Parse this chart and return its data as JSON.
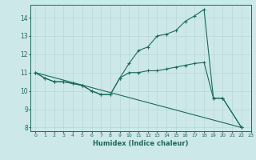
{
  "title": "",
  "xlabel": "Humidex (Indice chaleur)",
  "ylabel": "",
  "bg_color": "#cce8e8",
  "grid_color": "#b8d8d8",
  "line_color": "#1a6b5a",
  "xlim": [
    -0.5,
    23
  ],
  "ylim": [
    7.8,
    14.7
  ],
  "yticks": [
    8,
    9,
    10,
    11,
    12,
    13,
    14
  ],
  "xticks": [
    0,
    1,
    2,
    3,
    4,
    5,
    6,
    7,
    8,
    9,
    10,
    11,
    12,
    13,
    14,
    15,
    16,
    17,
    18,
    19,
    20,
    21,
    22,
    23
  ],
  "series": [
    {
      "x": [
        0,
        1,
        2,
        3,
        4,
        5,
        6,
        7,
        8,
        9,
        10,
        11,
        12,
        13,
        14,
        15,
        16,
        17,
        18,
        19,
        20,
        22
      ],
      "y": [
        11.0,
        10.7,
        10.5,
        10.5,
        10.4,
        10.3,
        10.0,
        9.8,
        9.8,
        10.7,
        11.5,
        12.2,
        12.4,
        13.0,
        13.1,
        13.3,
        13.8,
        14.1,
        14.45,
        9.6,
        9.6,
        8.0
      ],
      "has_markers": true
    },
    {
      "x": [
        0,
        1,
        2,
        3,
        4,
        5,
        6,
        7,
        8,
        9,
        10,
        11,
        12,
        13,
        14,
        15,
        16,
        17,
        18,
        19,
        20,
        22
      ],
      "y": [
        11.0,
        10.7,
        10.5,
        10.5,
        10.4,
        10.3,
        10.0,
        9.8,
        9.8,
        10.7,
        11.0,
        11.0,
        11.1,
        11.1,
        11.2,
        11.3,
        11.4,
        11.5,
        11.55,
        9.6,
        9.6,
        8.0
      ],
      "has_markers": true
    },
    {
      "x": [
        0,
        22
      ],
      "y": [
        11.0,
        8.0
      ],
      "has_markers": false
    }
  ]
}
